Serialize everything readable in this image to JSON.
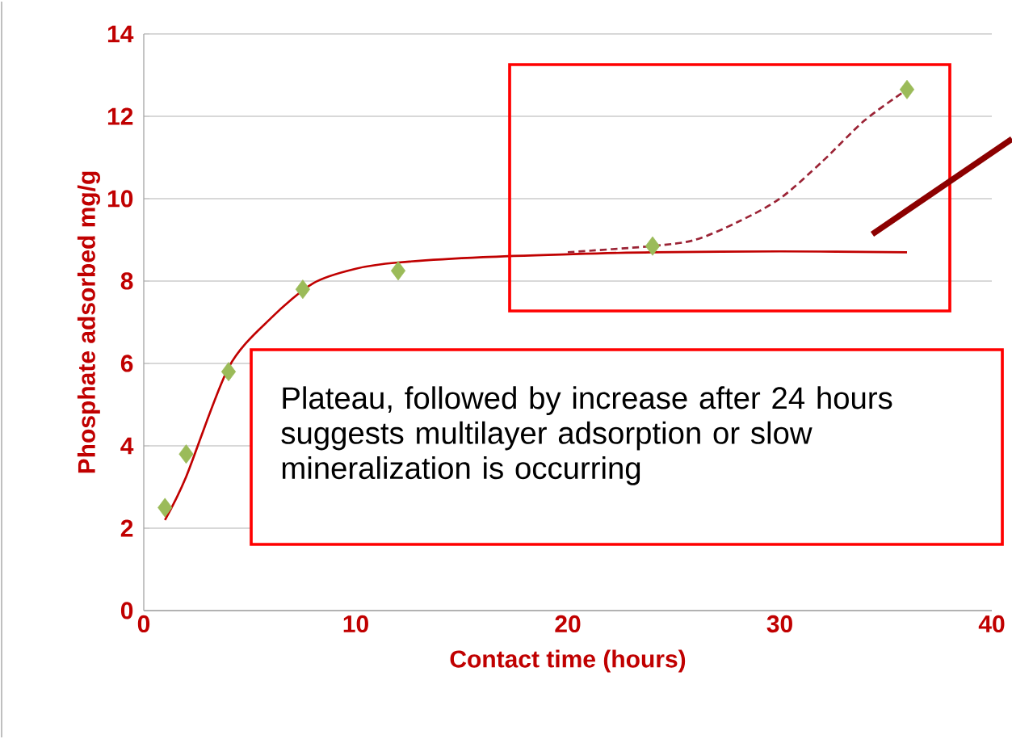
{
  "chart_data": {
    "type": "scatter",
    "xlabel": "Contact time (hours)",
    "ylabel": "Phosphate adsorbed mg/g",
    "series": [
      {
        "type": "line",
        "color": "#c00000",
        "line_style": "solid",
        "marker": "none",
        "x": [
          1,
          2,
          4,
          6,
          8,
          10,
          12,
          16,
          20,
          24,
          30,
          36
        ],
        "values": [
          2.2,
          3.25,
          5.9,
          7.1,
          7.95,
          8.3,
          8.45,
          8.58,
          8.65,
          8.7,
          8.72,
          8.7
        ]
      },
      {
        "type": "line",
        "color": "#9b2335",
        "line_style": "dashed",
        "marker": "none",
        "x": [
          20,
          24,
          26,
          28,
          30,
          32,
          34,
          36
        ],
        "values": [
          8.7,
          8.85,
          9.0,
          9.43,
          10.0,
          10.9,
          11.9,
          12.65
        ]
      },
      {
        "color": "#9bbb59",
        "marker": "diamond",
        "x": [
          1,
          2,
          4,
          7.5,
          12,
          24,
          36
        ],
        "values": [
          2.5,
          3.8,
          5.8,
          7.8,
          8.25,
          8.85,
          12.65
        ]
      }
    ],
    "xlim": [
      0,
      40
    ],
    "xticks": [
      0,
      10,
      20,
      30,
      40
    ],
    "ylim": [
      0,
      14
    ],
    "yticks": [
      0,
      2,
      4,
      6,
      8,
      10,
      12,
      14
    ],
    "grid": "y",
    "annotations": [
      "Plateau, followed by increase after 24 hours suggests multilayer adsorption or slow mineralization is occurring"
    ]
  }
}
